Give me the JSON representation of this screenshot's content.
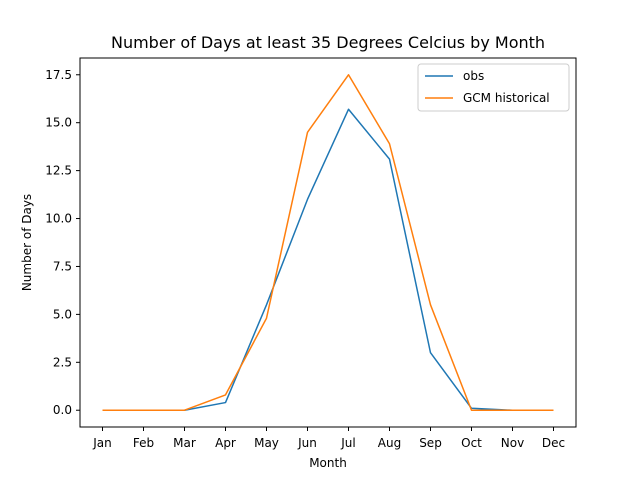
{
  "chart_data": {
    "type": "line",
    "title": "Number of Days at least 35 Degrees Celcius by Month",
    "xlabel": "Month",
    "ylabel": "Number of Days",
    "categories": [
      "Jan",
      "Feb",
      "Mar",
      "Apr",
      "May",
      "Jun",
      "Jul",
      "Aug",
      "Sep",
      "Oct",
      "Nov",
      "Dec"
    ],
    "yticks": [
      "0.0",
      "2.5",
      "5.0",
      "7.5",
      "10.0",
      "12.5",
      "15.0",
      "17.5"
    ],
    "ylim": [
      -0.875,
      18.375
    ],
    "grid": false,
    "legend_position": "top-right",
    "series": [
      {
        "name": "obs",
        "color": "#1f77b4",
        "values": [
          0,
          0,
          0,
          0.4,
          5.5,
          11.0,
          15.7,
          13.1,
          3.0,
          0.1,
          0,
          0
        ]
      },
      {
        "name": "GCM historical",
        "color": "#ff7f0e",
        "values": [
          0,
          0,
          0,
          0.8,
          4.8,
          14.5,
          17.5,
          13.9,
          5.5,
          0,
          0,
          0
        ]
      }
    ]
  }
}
